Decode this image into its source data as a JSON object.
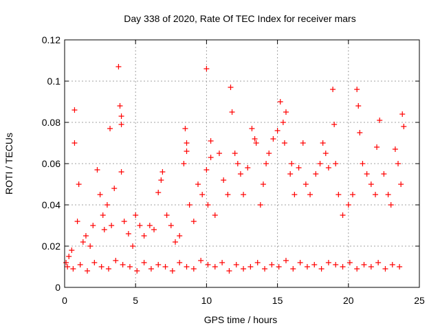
{
  "chart_data": {
    "type": "scatter",
    "title": "Day 338 of 2020, Rate Of TEC Index for receiver mars",
    "xlabel": "GPS time / hours",
    "ylabel": "ROTI / TECUs",
    "xlim": [
      0,
      25
    ],
    "ylim": [
      0,
      0.12
    ],
    "xticks": [
      0,
      5,
      10,
      15,
      20,
      25
    ],
    "xtick_labels": [
      "0",
      "5",
      "10",
      "15",
      "20",
      "25"
    ],
    "yticks": [
      0,
      0.02,
      0.04,
      0.06,
      0.08,
      0.1,
      0.12
    ],
    "ytick_labels": [
      "0",
      "0.02",
      "0.04",
      "0.06",
      "0.08",
      "0.1",
      "0.12"
    ],
    "grid": true,
    "marker": "+",
    "series": [
      {
        "name": "ROTI",
        "color": "#ff0000",
        "x": [
          0.1,
          0.3,
          0.5,
          0.7,
          0.7,
          0.9,
          1.0,
          1.3,
          1.5,
          1.8,
          2.0,
          2.3,
          2.5,
          2.7,
          2.8,
          3.0,
          3.2,
          3.3,
          3.5,
          3.8,
          3.9,
          4.0,
          4.0,
          4.0,
          4.2,
          4.5,
          4.8,
          5.0,
          5.3,
          5.6,
          6.0,
          6.3,
          6.6,
          6.8,
          6.9,
          7.2,
          7.5,
          7.8,
          8.1,
          8.4,
          8.5,
          8.6,
          8.6,
          8.8,
          9.1,
          9.4,
          9.7,
          10.0,
          10.0,
          10.1,
          10.3,
          10.3,
          10.6,
          10.9,
          11.2,
          11.5,
          11.7,
          11.8,
          12.0,
          12.2,
          12.4,
          12.6,
          12.9,
          13.2,
          13.4,
          13.5,
          13.8,
          14.0,
          14.2,
          14.4,
          14.7,
          15.0,
          15.2,
          15.4,
          15.5,
          15.6,
          15.9,
          16.0,
          16.2,
          16.5,
          16.8,
          17.0,
          17.3,
          17.7,
          18.0,
          18.2,
          18.4,
          18.6,
          18.9,
          19.0,
          19.1,
          19.3,
          19.6,
          20.0,
          20.3,
          20.6,
          20.7,
          20.8,
          21.0,
          21.3,
          21.6,
          21.9,
          22.0,
          22.2,
          22.5,
          22.8,
          23.0,
          23.3,
          23.5,
          23.7,
          23.8,
          23.9,
          0.2,
          0.6,
          1.1,
          1.6,
          2.1,
          2.6,
          3.1,
          3.6,
          4.1,
          4.6,
          5.1,
          5.6,
          6.1,
          6.6,
          7.1,
          7.6,
          8.1,
          8.6,
          9.1,
          9.6,
          10.1,
          10.6,
          11.1,
          11.6,
          12.1,
          12.6,
          13.1,
          13.6,
          14.1,
          14.6,
          15.1,
          15.6,
          16.1,
          16.6,
          17.1,
          17.6,
          18.1,
          18.6,
          19.1,
          19.6,
          20.1,
          20.6,
          21.1,
          21.6,
          22.1,
          22.6,
          23.1,
          23.6
        ],
        "y": [
          0.012,
          0.015,
          0.018,
          0.086,
          0.07,
          0.032,
          0.05,
          0.022,
          0.025,
          0.02,
          0.03,
          0.057,
          0.045,
          0.035,
          0.028,
          0.04,
          0.077,
          0.03,
          0.048,
          0.107,
          0.088,
          0.083,
          0.079,
          0.056,
          0.032,
          0.026,
          0.02,
          0.035,
          0.03,
          0.025,
          0.03,
          0.028,
          0.046,
          0.052,
          0.056,
          0.035,
          0.03,
          0.022,
          0.025,
          0.06,
          0.077,
          0.07,
          0.066,
          0.04,
          0.032,
          0.05,
          0.045,
          0.106,
          0.057,
          0.04,
          0.071,
          0.063,
          0.035,
          0.065,
          0.052,
          0.045,
          0.097,
          0.085,
          0.065,
          0.06,
          0.055,
          0.045,
          0.058,
          0.077,
          0.072,
          0.07,
          0.04,
          0.05,
          0.06,
          0.065,
          0.072,
          0.076,
          0.09,
          0.08,
          0.07,
          0.085,
          0.055,
          0.06,
          0.045,
          0.058,
          0.07,
          0.05,
          0.045,
          0.055,
          0.06,
          0.07,
          0.065,
          0.058,
          0.096,
          0.079,
          0.06,
          0.045,
          0.035,
          0.04,
          0.045,
          0.096,
          0.088,
          0.075,
          0.06,
          0.055,
          0.05,
          0.045,
          0.068,
          0.081,
          0.055,
          0.045,
          0.04,
          0.067,
          0.06,
          0.05,
          0.084,
          0.078,
          0.01,
          0.009,
          0.011,
          0.008,
          0.012,
          0.01,
          0.009,
          0.013,
          0.011,
          0.01,
          0.008,
          0.012,
          0.009,
          0.011,
          0.01,
          0.008,
          0.012,
          0.01,
          0.009,
          0.013,
          0.011,
          0.01,
          0.012,
          0.008,
          0.011,
          0.009,
          0.01,
          0.012,
          0.009,
          0.011,
          0.01,
          0.013,
          0.009,
          0.012,
          0.01,
          0.011,
          0.009,
          0.012,
          0.011,
          0.01,
          0.012,
          0.009,
          0.011,
          0.01,
          0.012,
          0.009,
          0.011,
          0.01
        ]
      }
    ]
  }
}
